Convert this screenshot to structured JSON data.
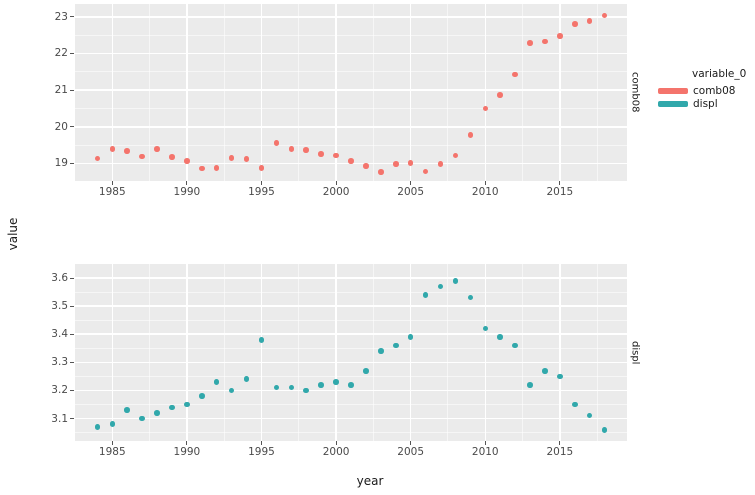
{
  "figure": {
    "background": "#ffffff",
    "panel_bg": "#ebebeb",
    "grid_color": "#ffffff",
    "tick_label_color": "#4a4a4a",
    "accent_red": "#f4746c",
    "accent_teal": "#31a8ab"
  },
  "axes": {
    "x_title": "year",
    "y_title": "value"
  },
  "legend": {
    "title": "variable_0",
    "entries": [
      {
        "label": "comb08",
        "color": "#f4746c"
      },
      {
        "label": "displ",
        "color": "#31a8ab"
      }
    ]
  },
  "chart_data": {
    "type": "scatter",
    "title": "",
    "xlabel": "year",
    "ylabel": "value",
    "facet_variable": "variable_0",
    "legend_position": "right",
    "grid": "on",
    "xlim": [
      1982.5,
      2019.5
    ],
    "x_major_ticks": [
      1985,
      1990,
      1995,
      2000,
      2005,
      2010,
      2015
    ],
    "x_minor_ticks": [
      1987.5,
      1992.5,
      1997.5,
      2002.5,
      2007.5,
      2012.5,
      2017.5
    ],
    "x": [
      1984,
      1985,
      1986,
      1987,
      1988,
      1989,
      1990,
      1991,
      1992,
      1993,
      1994,
      1995,
      1996,
      1997,
      1998,
      1999,
      2000,
      2001,
      2002,
      2003,
      2004,
      2005,
      2006,
      2007,
      2008,
      2009,
      2010,
      2011,
      2012,
      2013,
      2014,
      2015,
      2016,
      2017,
      2018
    ],
    "facets": [
      {
        "label": "comb08",
        "color": "#f4746c",
        "ylim": [
          18.52,
          23.35
        ],
        "y_major_ticks": [
          {
            "v": 19,
            "label": "19"
          },
          {
            "v": 20,
            "label": "20"
          },
          {
            "v": 21,
            "label": "21"
          },
          {
            "v": 22,
            "label": "22"
          },
          {
            "v": 23,
            "label": "23"
          }
        ],
        "y_minor_ticks": [
          19.5,
          20.5,
          21.5,
          22.5
        ],
        "values": [
          19.14,
          19.39,
          19.34,
          19.19,
          19.39,
          19.18,
          19.06,
          18.86,
          18.88,
          19.15,
          19.12,
          18.88,
          19.56,
          19.39,
          19.36,
          19.25,
          19.21,
          19.07,
          18.93,
          18.76,
          18.98,
          19.01,
          18.78,
          18.99,
          19.21,
          19.77,
          20.5,
          20.86,
          21.43,
          22.29,
          22.33,
          22.47,
          22.8,
          22.88,
          23.03
        ]
      },
      {
        "label": "displ",
        "color": "#31a8ab",
        "ylim": [
          3.02,
          3.65
        ],
        "y_major_ticks": [
          {
            "v": 3.1,
            "label": "3.1"
          },
          {
            "v": 3.2,
            "label": "3.2"
          },
          {
            "v": 3.3,
            "label": "3.3"
          },
          {
            "v": 3.4,
            "label": "3.4"
          },
          {
            "v": 3.5,
            "label": "3.5"
          },
          {
            "v": 3.6,
            "label": "3.6"
          }
        ],
        "y_minor_ticks": [
          3.05,
          3.15,
          3.25,
          3.35,
          3.45,
          3.55
        ],
        "values": [
          3.07,
          3.08,
          3.13,
          3.1,
          3.12,
          3.14,
          3.15,
          3.18,
          3.23,
          3.2,
          3.24,
          3.38,
          3.21,
          3.21,
          3.2,
          3.22,
          3.23,
          3.22,
          3.27,
          3.34,
          3.36,
          3.39,
          3.54,
          3.57,
          3.59,
          3.53,
          3.42,
          3.39,
          3.36,
          3.22,
          3.27,
          3.25,
          3.15,
          3.11,
          3.06
        ]
      }
    ]
  }
}
